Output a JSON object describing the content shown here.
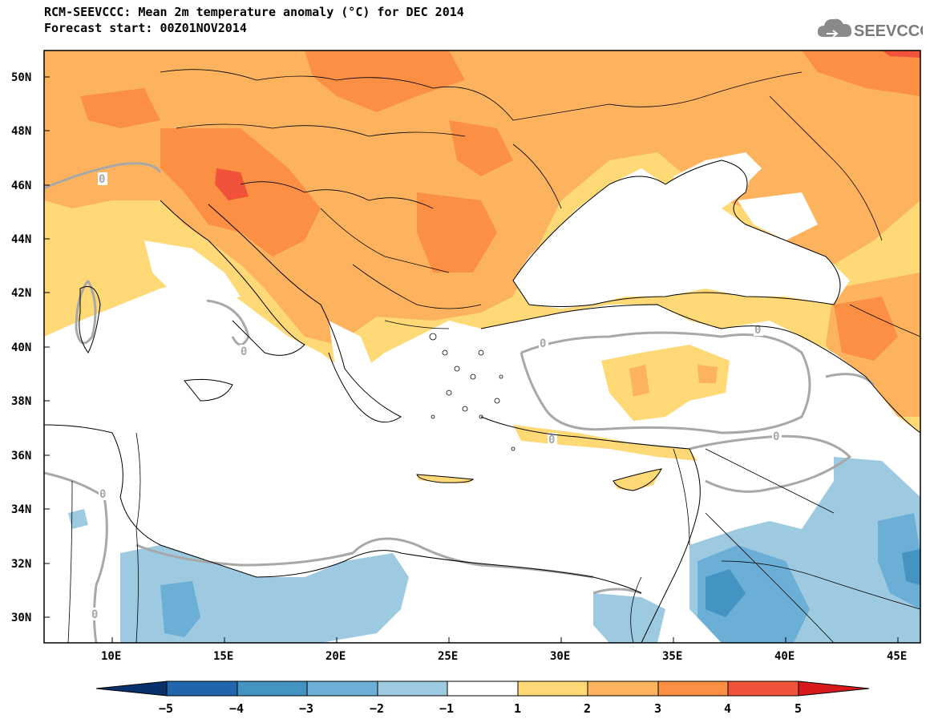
{
  "header": {
    "title_line1": "RCM-SEEVCCC: Mean 2m temperature anomaly (°C) for DEC 2014",
    "title_line2": "Forecast start: 00Z01NOV2014",
    "logo_text": "SEEVCCC",
    "logo_icon": "cloud-icon"
  },
  "map": {
    "region": "Eastern Mediterranean & Black Sea",
    "lon_range": [
      7,
      46
    ],
    "lat_range": [
      29,
      51
    ],
    "contour_label": "0",
    "lat_ticks": [
      "50N",
      "48N",
      "46N",
      "44N",
      "42N",
      "40N",
      "38N",
      "36N",
      "34N",
      "32N",
      "30N"
    ],
    "lon_ticks": [
      "10E",
      "15E",
      "20E",
      "25E",
      "30E",
      "35E",
      "40E",
      "45E"
    ]
  },
  "colorbar": {
    "labels": [
      "−5",
      "−4",
      "−3",
      "−2",
      "−1",
      "1",
      "2",
      "3",
      "4",
      "5"
    ],
    "colors": [
      "#08306b",
      "#2166ac",
      "#4393c3",
      "#6baed6",
      "#9ecae1",
      "#ffffff",
      "#fed976",
      "#fdae61",
      "#fd8d3c",
      "#f03b20",
      "#d7191c"
    ]
  },
  "colors": {
    "warm_1": "#fed976",
    "warm_2": "#fdb35e",
    "warm_3": "#fb8f43",
    "warm_4": "#f0523a",
    "cool_1": "#9ecae1",
    "cool_2": "#6baed6",
    "cool_3": "#4393c3",
    "sea": "#ffffff",
    "contour": "#a8a8a8"
  }
}
